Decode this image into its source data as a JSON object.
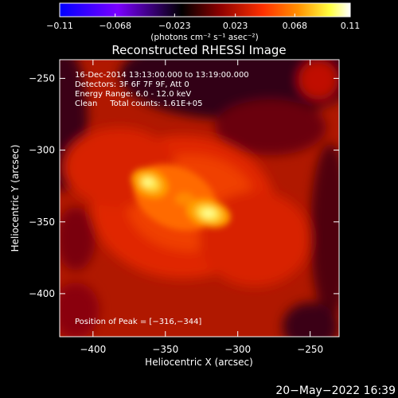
{
  "chart_data": {
    "type": "heatmap",
    "title": "Reconstructed RHESSI Image",
    "xlabel": "Heliocentric X (arcsec)",
    "ylabel": "Heliocentric Y (arcsec)",
    "xlim": [
      -423,
      -230
    ],
    "ylim": [
      -430,
      -237
    ],
    "x_ticks": [
      -400,
      -350,
      -300,
      -250
    ],
    "y_ticks": [
      -250,
      -300,
      -350,
      -400
    ],
    "x_tick_labels": [
      "−400",
      "−350",
      "−300",
      "−250"
    ],
    "y_tick_labels": [
      "−250",
      "−300",
      "−350",
      "−400"
    ],
    "colorbar": {
      "range": [
        -0.11,
        0.11
      ],
      "ticks": [
        -0.11,
        -0.068,
        -0.023,
        0.023,
        0.068,
        0.11
      ],
      "tick_labels": [
        "−0.11",
        "−0.068",
        "−0.023",
        "0.023",
        "0.068",
        "0.11"
      ],
      "units": "(photons cm⁻² s⁻¹ asec⁻²)",
      "colors": [
        "#0000ff",
        "#7a00ff",
        "#000000",
        "#8b0000",
        "#ff3000",
        "#ff9000",
        "#ffff40",
        "#ffffff"
      ]
    },
    "sources": [
      {
        "x": -361,
        "y": -321,
        "peak": 0.1
      },
      {
        "x": -316,
        "y": -344,
        "peak": 0.11
      }
    ],
    "info_lines": [
      "16-Dec-2014 13:13:00.000 to 13:19:00.000",
      "Detectors: 3F 6F 7F 9F, Att 0",
      "Energy Range: 6.0 - 12.0 keV",
      "Clean     Total counts: 1.61E+05"
    ],
    "peak_label": "Position of Peak = [−316,−344]",
    "timestamp": "20−May−2022 16:39"
  }
}
